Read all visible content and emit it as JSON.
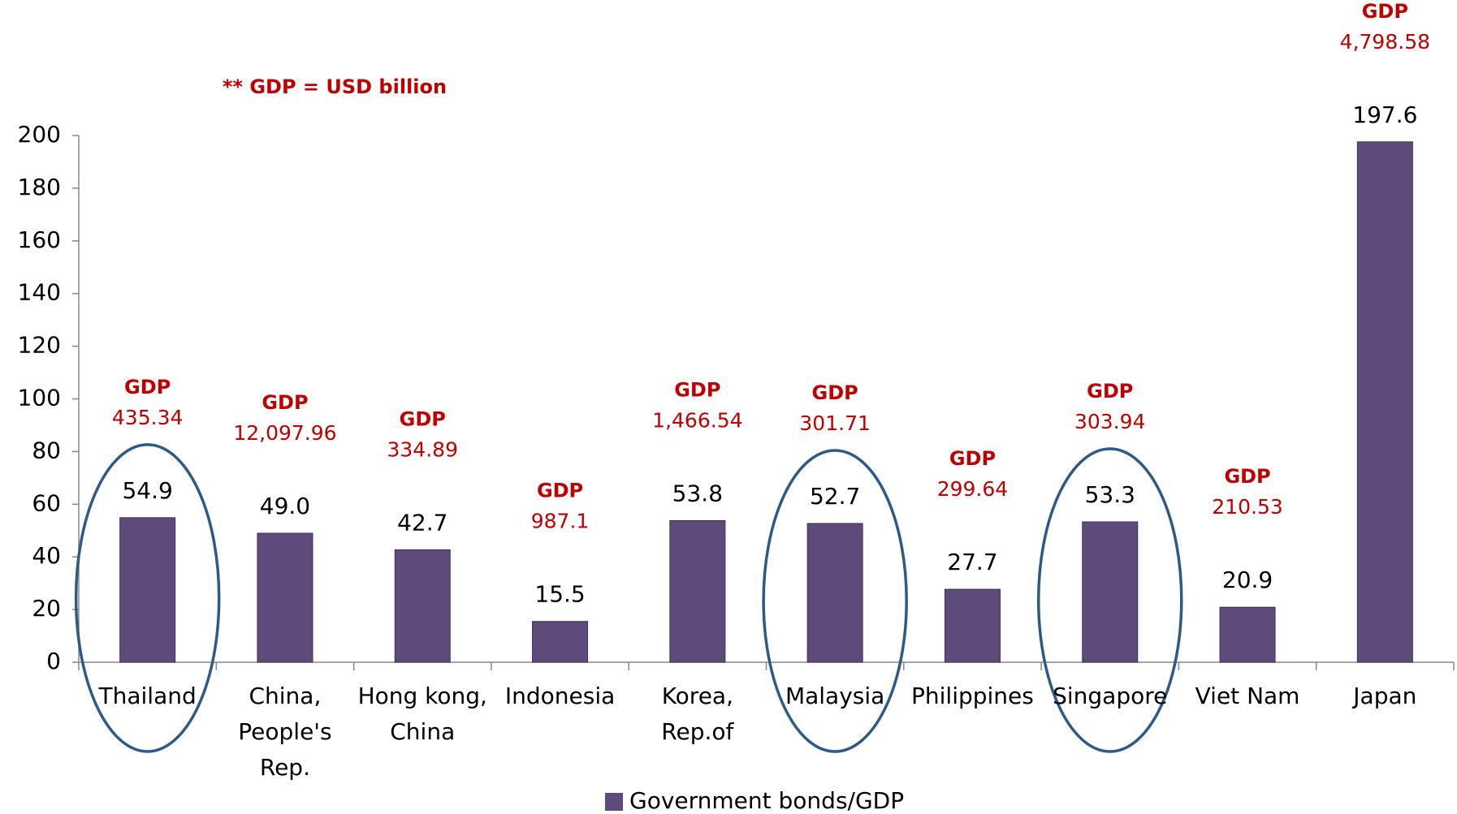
{
  "chart_data": {
    "type": "bar",
    "note": "** GDP = USD billion",
    "categories": [
      "Thailand",
      "China, People's Rep.",
      "Hong kong, China",
      "Indonesia",
      "Korea, Rep.of",
      "Malaysia",
      "Philippines",
      "Singapore",
      "Viet Nam",
      "Japan"
    ],
    "series": [
      {
        "name": "Government bonds/GDP",
        "color": "#5f4b7b",
        "values": [
          54.9,
          49.0,
          42.7,
          15.5,
          53.8,
          52.7,
          27.7,
          53.3,
          20.9,
          197.6
        ],
        "value_labels": [
          "54.9",
          "49.0",
          "42.7",
          "15.5",
          "53.8",
          "52.7",
          "27.7",
          "53.3",
          "20.9",
          "197.6"
        ]
      }
    ],
    "annotations": [
      {
        "label": "GDP",
        "text": "435.34"
      },
      {
        "label": "GDP",
        "text": "12,097.96"
      },
      {
        "label": "GDP",
        "text": "334.89"
      },
      {
        "label": "GDP",
        "text": "987.1"
      },
      {
        "label": "GDP",
        "text": "1,466.54"
      },
      {
        "label": "GDP",
        "text": "301.71"
      },
      {
        "label": "GDP",
        "text": "299.64"
      },
      {
        "label": "GDP",
        "text": "303.94"
      },
      {
        "label": "GDP",
        "text": "210.53"
      },
      {
        "label": "GDP",
        "text": "4,798.58"
      }
    ],
    "highlight_indices": [
      0,
      5,
      7
    ],
    "ylim": [
      0,
      200
    ],
    "yticks": [
      0,
      20,
      40,
      60,
      80,
      100,
      120,
      140,
      160,
      180,
      200
    ],
    "grid": false,
    "legend": "bottom"
  }
}
